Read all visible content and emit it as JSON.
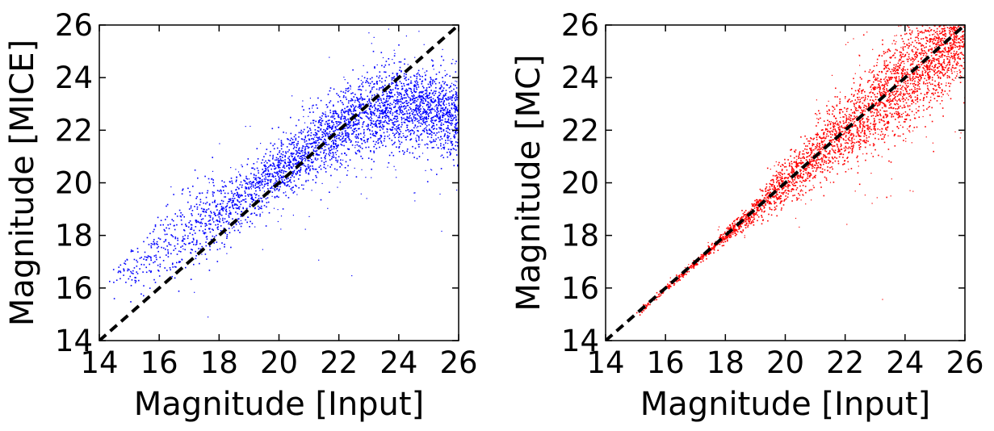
{
  "chart_data": [
    {
      "type": "scatter",
      "xlabel": "Magnitude [Input]",
      "ylabel": "Magnitude [MICE]",
      "xlim": [
        14,
        26
      ],
      "ylim": [
        14,
        26
      ],
      "xticks": [
        "14",
        "16",
        "18",
        "20",
        "22",
        "24",
        "26"
      ],
      "yticks": [
        "14",
        "16",
        "18",
        "20",
        "22",
        "24",
        "26"
      ],
      "grid": false,
      "reference_line": {
        "x": [
          14,
          26
        ],
        "y": [
          14,
          26
        ],
        "style": "dashed",
        "color": "#000000"
      },
      "series": [
        {
          "color": "#0000ff",
          "dense_region": {
            "x": [
              14.3,
              15.0,
              16.0,
              17.0,
              18.0,
              19.0,
              20.0,
              21.0,
              22.0,
              23.0,
              24.0,
              25.0,
              26.0
            ],
            "y_center": [
              16.3,
              16.7,
              17.6,
              18.3,
              18.9,
              19.6,
              20.5,
              21.3,
              22.1,
              22.7,
              22.9,
              22.8,
              22.6
            ],
            "y_low": [
              15.9,
              15.9,
              16.6,
              17.2,
              18.2,
              19.0,
              19.9,
              20.6,
              21.2,
              21.7,
              21.6,
              21.3,
              21.0
            ],
            "y_high": [
              16.8,
              17.6,
              18.6,
              19.6,
              20.3,
              20.9,
              21.7,
              22.6,
              23.5,
              24.2,
              24.2,
              23.8,
              23.5
            ]
          }
        }
      ]
    },
    {
      "type": "scatter",
      "xlabel": "Magnitude [Input]",
      "ylabel": "Magnitude [MC]",
      "xlim": [
        14,
        26
      ],
      "ylim": [
        14,
        26
      ],
      "xticks": [
        "14",
        "16",
        "18",
        "20",
        "22",
        "24",
        "26"
      ],
      "yticks": [
        "14",
        "16",
        "18",
        "20",
        "22",
        "24",
        "26"
      ],
      "grid": false,
      "reference_line": {
        "x": [
          14,
          26
        ],
        "y": [
          14,
          26
        ],
        "style": "dashed",
        "color": "#000000"
      },
      "series": [
        {
          "color": "#ff0000",
          "dense_region": {
            "x": [
              14.8,
              16.0,
              17.0,
              18.0,
              19.0,
              20.0,
              21.0,
              22.0,
              23.0,
              24.0,
              25.0,
              26.0
            ],
            "y_center": [
              14.8,
              16.0,
              17.0,
              18.0,
              19.0,
              20.1,
              21.1,
              22.1,
              23.0,
              24.0,
              25.0,
              25.8
            ],
            "y_low": [
              14.7,
              15.9,
              16.9,
              17.8,
              18.6,
              19.4,
              20.2,
              20.9,
              21.6,
              22.3,
              23.0,
              23.6
            ],
            "y_high": [
              14.9,
              16.1,
              17.1,
              18.2,
              19.4,
              20.8,
              22.0,
              23.2,
              24.3,
              25.3,
              26.0,
              26.0
            ]
          }
        }
      ]
    }
  ]
}
